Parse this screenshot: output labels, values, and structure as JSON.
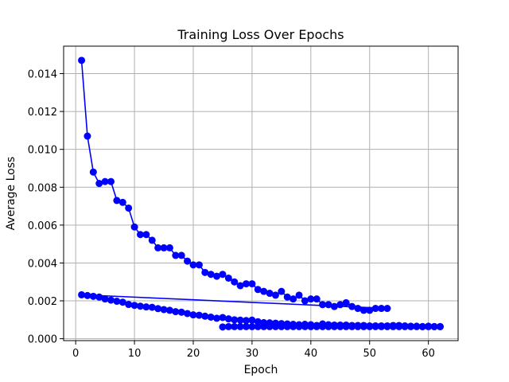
{
  "chart_data": {
    "type": "line",
    "title": "Training Loss Over Epochs",
    "xlabel": "Epoch",
    "ylabel": "Average Loss",
    "xlim": [
      -2.05,
      65.05
    ],
    "ylim": [
      -0.0001,
      0.01545
    ],
    "xticks": [
      0,
      10,
      20,
      30,
      40,
      50,
      60
    ],
    "yticks": [
      0.0,
      0.002,
      0.004,
      0.006,
      0.008,
      0.01,
      0.012,
      0.014
    ],
    "ytick_labels": [
      "0.000",
      "0.002",
      "0.004",
      "0.006",
      "0.008",
      "0.010",
      "0.012",
      "0.014"
    ],
    "grid": true,
    "color": "#0000ff",
    "series": [
      {
        "x": [
          1,
          2,
          3,
          4,
          5,
          6,
          7,
          8,
          9,
          10,
          11,
          12,
          13,
          14,
          15,
          16,
          17,
          18,
          19,
          20,
          21,
          22,
          23,
          24,
          25,
          26,
          27,
          28,
          29,
          30,
          31,
          32,
          33,
          34,
          35,
          36,
          37,
          38,
          39,
          40,
          41,
          42,
          43,
          44,
          45,
          46,
          47,
          48,
          49,
          50,
          51,
          52,
          53,
          1,
          2,
          3,
          4,
          5,
          6,
          7,
          8,
          9,
          10,
          11,
          12,
          13,
          14,
          15,
          16,
          17,
          18,
          19,
          20,
          21,
          22,
          23,
          24,
          25,
          26,
          27,
          28,
          29,
          30,
          31,
          32,
          33,
          34,
          35,
          36,
          37,
          38,
          39,
          40,
          41,
          42,
          43,
          44,
          45,
          46,
          47,
          48,
          49,
          50,
          51,
          52,
          53,
          54,
          55,
          56,
          57,
          58,
          59,
          60,
          61,
          62,
          25,
          26,
          27,
          28,
          29,
          30,
          31,
          32,
          33,
          34,
          35,
          36,
          37,
          38,
          39,
          40,
          41,
          42,
          43,
          44,
          45,
          46,
          47,
          48,
          49,
          50,
          51,
          52,
          53,
          54,
          55,
          56,
          57,
          58,
          59,
          60,
          61,
          62
        ],
        "y": [
          0.0147,
          0.0107,
          0.0088,
          0.0082,
          0.0083,
          0.0083,
          0.0073,
          0.0072,
          0.0069,
          0.0059,
          0.0055,
          0.0055,
          0.0052,
          0.0048,
          0.0048,
          0.0048,
          0.0044,
          0.0044,
          0.0041,
          0.0039,
          0.0039,
          0.0035,
          0.0034,
          0.0033,
          0.0034,
          0.0032,
          0.003,
          0.0028,
          0.0029,
          0.0029,
          0.0026,
          0.0025,
          0.0024,
          0.0023,
          0.0025,
          0.0022,
          0.0021,
          0.0023,
          0.002,
          0.0021,
          0.0021,
          0.0018,
          0.0018,
          0.0017,
          0.0018,
          0.0019,
          0.0017,
          0.0016,
          0.0015,
          0.0015,
          0.0016,
          0.0016,
          0.0016,
          0.00232,
          0.00228,
          0.00224,
          0.0022,
          0.0021,
          0.00204,
          0.00198,
          0.00193,
          0.00181,
          0.00176,
          0.00172,
          0.00168,
          0.00166,
          0.00159,
          0.00154,
          0.0015,
          0.00143,
          0.0014,
          0.00133,
          0.00126,
          0.00124,
          0.00119,
          0.00114,
          0.00108,
          0.00112,
          0.00105,
          0.001,
          0.00098,
          0.00096,
          0.00098,
          0.0009,
          0.00085,
          0.00084,
          0.00082,
          0.0008,
          0.00078,
          0.00076,
          0.00074,
          0.00076,
          0.00074,
          0.0007,
          0.00078,
          0.00074,
          0.00072,
          0.00072,
          0.00072,
          0.0007,
          0.0007,
          0.0007,
          0.00068,
          0.00068,
          0.00068,
          0.00068,
          0.0007,
          0.0007,
          0.00068,
          0.00066,
          0.00066,
          0.00064,
          0.00066,
          0.00064,
          0.00064,
          0.00062,
          0.00064,
          0.00064,
          0.00064,
          0.00064,
          0.00064,
          0.00064,
          0.00064,
          0.00064,
          0.00064,
          0.00064,
          0.00064,
          0.00064,
          0.00064,
          0.00064,
          0.00064,
          0.00064,
          0.00064,
          0.00064,
          0.00064,
          0.00064,
          0.00064,
          0.00064,
          0.00064,
          0.00064,
          0.00064,
          0.00064,
          0.00064,
          0.00064,
          0.00064,
          0.00064,
          0.00064,
          0.00064,
          0.00064,
          0.00064,
          0.00064,
          0.00064,
          0.00064
        ]
      }
    ]
  }
}
